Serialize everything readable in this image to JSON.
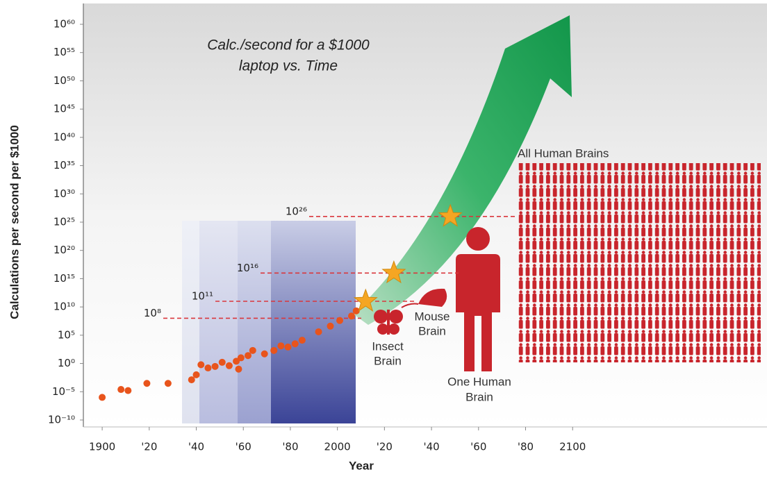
{
  "chart_data": {
    "type": "scatter",
    "title": [
      "Calc./second for a $1000",
      "laptop vs. Time"
    ],
    "x_label": "Year",
    "y_label": "Calculations per second per $1000",
    "color": "#e8541c",
    "log_y": true,
    "xlim": [
      1892,
      2115
    ],
    "ylim": [
      1e-10,
      1e+60
    ],
    "xticks": [
      1900,
      {
        "value": 1920,
        "label": "'20"
      },
      {
        "value": 1940,
        "label": "'40"
      },
      {
        "value": 1960,
        "label": "'60"
      },
      {
        "value": 1980,
        "label": "'80"
      },
      2000,
      {
        "value": 2020,
        "label": "'20"
      },
      {
        "value": 2040,
        "label": "'40"
      },
      {
        "value": 2060,
        "label": "'60"
      },
      {
        "value": 2080,
        "label": "'80"
      },
      2100
    ],
    "yticks": [
      {
        "value": 1e-10,
        "label": "10⁻¹⁰"
      },
      {
        "value": 1e-05,
        "label": "10⁻⁵"
      },
      {
        "value": 1,
        "label": "10⁰"
      },
      {
        "value": 100000.0,
        "label": "10⁵"
      },
      {
        "value": 10000000000.0,
        "label": "10¹⁰"
      },
      {
        "value": 1000000000000000.0,
        "label": "10¹⁵"
      },
      {
        "value": 1e+20,
        "label": "10²⁰"
      },
      {
        "value": 1e+25,
        "label": "10²⁵"
      },
      {
        "value": 1e+30,
        "label": "10³⁰"
      },
      {
        "value": 1e+35,
        "label": "10³⁵"
      },
      {
        "value": 1e+40,
        "label": "10⁴⁰"
      },
      {
        "value": 1e+45,
        "label": "10⁴⁵"
      },
      {
        "value": 1e+50,
        "label": "10⁵⁰"
      },
      {
        "value": 1e+55,
        "label": "10⁵⁵"
      },
      {
        "value": 1e+60,
        "label": "10⁶⁰"
      }
    ],
    "x": [
      1900,
      1908,
      1911,
      1919,
      1928,
      1938,
      1940,
      1942,
      1945,
      1948,
      1951,
      1954,
      1957,
      1958,
      1959,
      1962,
      1964,
      1969,
      1973,
      1976,
      1979,
      1982,
      1985,
      1992,
      1997,
      2001,
      2006,
      2008
    ],
    "values": [
      1e-06,
      2.5e-05,
      1.6e-05,
      0.0003,
      0.0003,
      0.0013,
      0.01,
      0.6,
      0.16,
      0.3,
      1.6,
      0.4,
      2.5,
      0.1,
      10,
      25,
      200,
      50,
      200,
      1300,
      800,
      3000,
      13000,
      400000,
      4000000,
      40000000,
      250000000,
      2000000000
    ],
    "thresholds": [
      {
        "value": 100000000.0,
        "label": "10⁸"
      },
      {
        "value": 100000000000.0,
        "label": "10¹¹"
      },
      {
        "value": 1e+16,
        "label": "10¹⁶"
      },
      {
        "value": 1e+26,
        "label": "10²⁶"
      }
    ],
    "milestones": {
      "x": [
        2012,
        2024,
        2048
      ],
      "values": [
        100000000000.0,
        1e+16,
        1e+26
      ],
      "color": "#f5a623"
    },
    "annotations": {
      "insect": [
        "Insect",
        "Brain"
      ],
      "mouse": [
        "Mouse",
        "Brain"
      ],
      "human": [
        "One Human",
        "Brain"
      ],
      "all": [
        "All Human Brains"
      ]
    }
  }
}
